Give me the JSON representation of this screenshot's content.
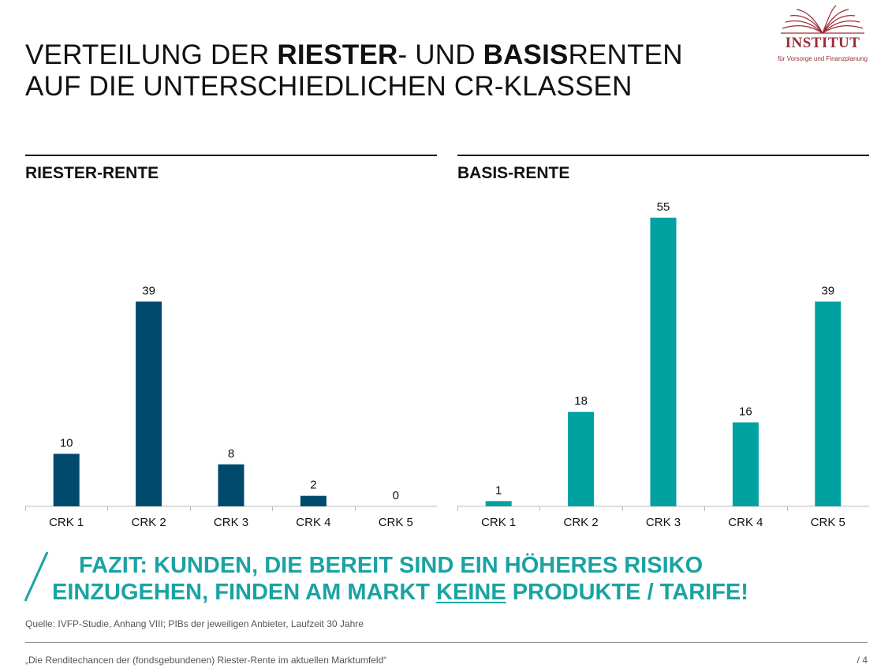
{
  "title": {
    "line1_pre": "VERTEILUNG DER ",
    "line1_b1": "RIESTER",
    "line1_mid": "- UND ",
    "line1_b2": "BASIS",
    "line1_post": "RENTEN",
    "line2": "AUF DIE UNTERSCHIEDLICHEN CR-KLASSEN"
  },
  "logo": {
    "name": "INSTITUT",
    "subtitle": "für Vorsorge und Finanzplanung",
    "icon": "open-book-icon",
    "color": "#9b2d35"
  },
  "chart_data": [
    {
      "type": "bar",
      "title": "RIESTER-RENTE",
      "categories": [
        "CRK 1",
        "CRK 2",
        "CRK 3",
        "CRK 4",
        "CRK 5"
      ],
      "values": [
        10,
        39,
        8,
        2,
        0
      ],
      "ylim": [
        0,
        58
      ],
      "color": "#004a6e",
      "grid": false,
      "legend": "none"
    },
    {
      "type": "bar",
      "title": "BASIS-RENTE",
      "categories": [
        "CRK 1",
        "CRK 2",
        "CRK 3",
        "CRK 4",
        "CRK 5"
      ],
      "values": [
        1,
        18,
        55,
        16,
        39
      ],
      "ylim": [
        0,
        58
      ],
      "color": "#00a1a1",
      "grid": false,
      "legend": "none"
    }
  ],
  "fazit": {
    "line1": "FAZIT: KUNDEN, DIE BEREIT SIND EIN HÖHERES RISIKO",
    "line2_pre": "EINZUGEHEN, FINDEN AM MARKT ",
    "line2_underlined": "KEINE",
    "line2_post": " PRODUKTE / TARIFE!",
    "color": "#1aa3a3"
  },
  "source": "Quelle: IVFP-Studie, Anhang VIII; PIBs der jeweiligen Anbieter, Laufzeit 30 Jahre",
  "footer": "„Die Renditechancen der (fondsgebundenen) Riester-Rente im aktuellen Marktumfeld“",
  "page_number": "/ 4"
}
